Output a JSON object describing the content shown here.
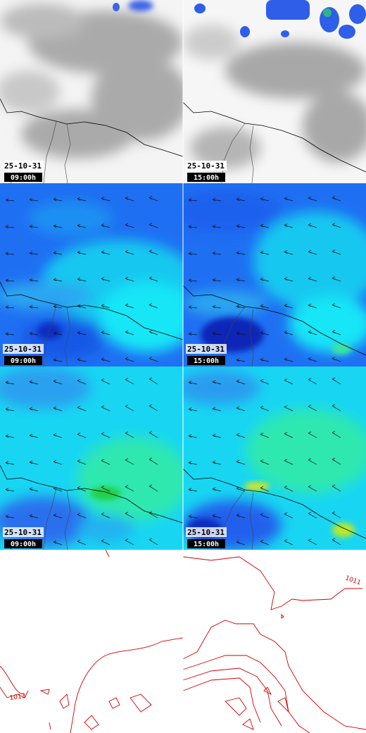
{
  "panels": [
    {
      "date": "25-10-31",
      "time": "09:00h"
    },
    {
      "date": "25-10-31",
      "time": "15:00h"
    },
    {
      "date": "25-10-31",
      "time": "09:00h"
    },
    {
      "date": "25-10-31",
      "time": "15:00h"
    },
    {
      "date": "25-10-31",
      "time": "09:00h"
    },
    {
      "date": "25-10-31",
      "time": "15:00h"
    }
  ],
  "contours": {
    "labels": [
      "1011",
      "1013"
    ]
  }
}
